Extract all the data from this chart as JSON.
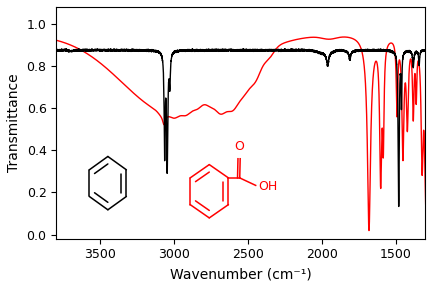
{
  "xlabel": "Wavenumber (cm⁻¹)",
  "ylabel": "Transmittance",
  "xlim": [
    3800,
    1300
  ],
  "ylim": [
    -0.02,
    1.08
  ],
  "yticks": [
    0.0,
    0.2,
    0.4,
    0.6,
    0.8,
    1.0
  ],
  "xticks": [
    3500,
    3000,
    2500,
    2000,
    1500
  ],
  "background_color": "#ffffff",
  "benzene_color": "black",
  "benzoic_color": "red",
  "lw_benzene": 1.0,
  "lw_benzoic": 1.0
}
